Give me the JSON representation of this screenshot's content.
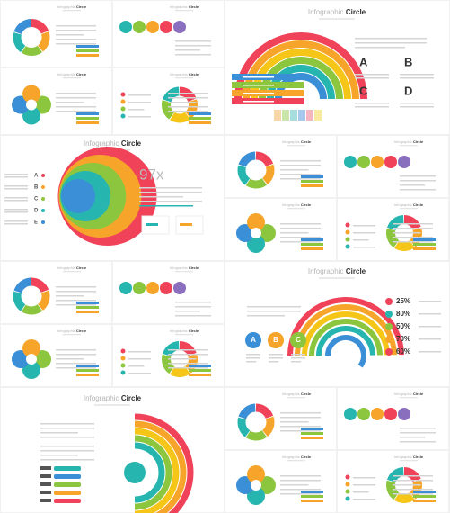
{
  "title": {
    "light": "Infographic",
    "bold": "Circle"
  },
  "letters": [
    "A",
    "B",
    "C",
    "D"
  ],
  "stat": "97x",
  "abc": [
    "A",
    "B",
    "C"
  ],
  "percentages": [
    "25%",
    "80%",
    "50%",
    "70%",
    "60%"
  ],
  "circle_labels": [
    "A",
    "B",
    "C",
    "D",
    "E"
  ]
}
